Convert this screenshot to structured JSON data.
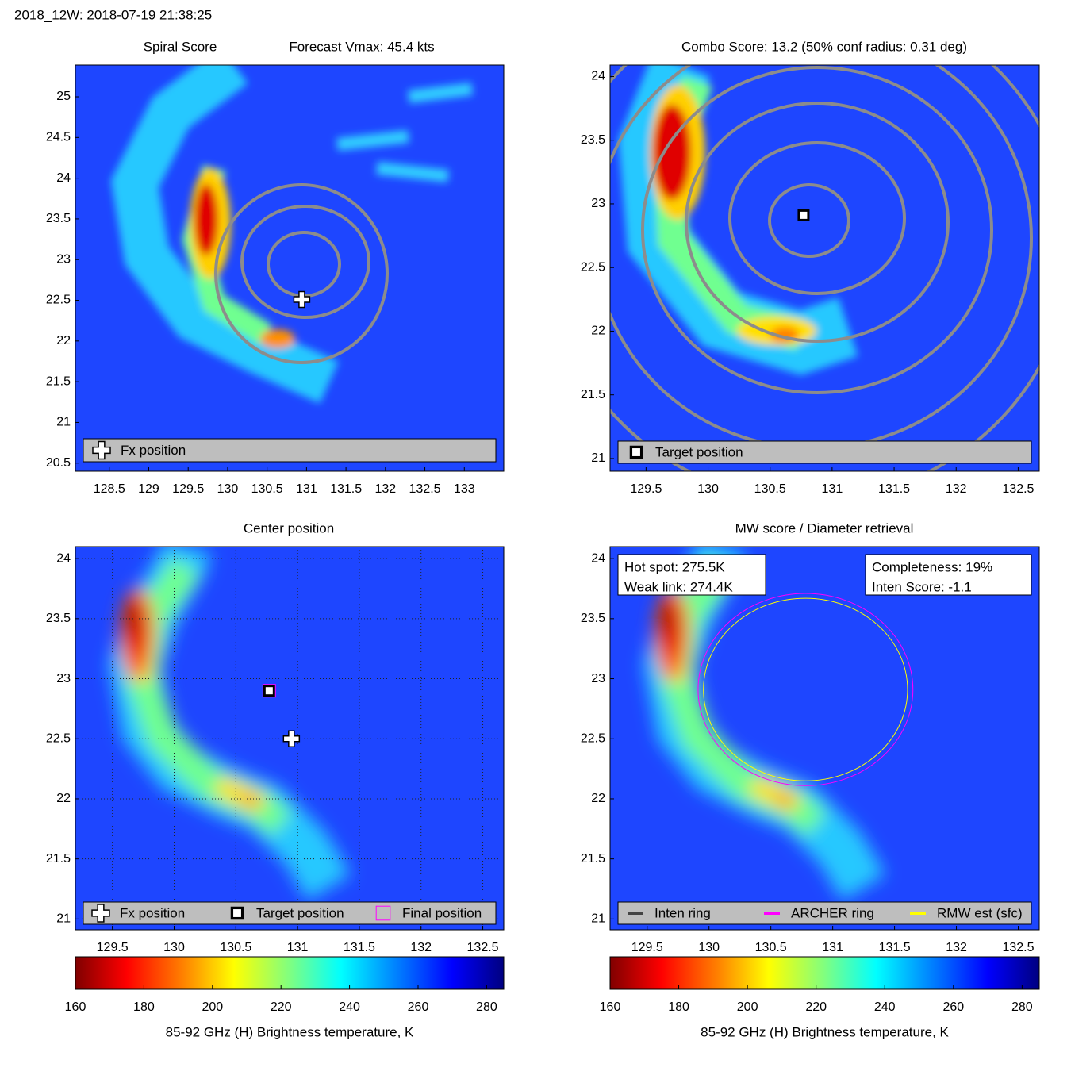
{
  "header": "2018_12W: 2018-07-19 21:38:25",
  "chart_data": [
    {
      "type": "map",
      "title": "Spiral Score",
      "subtitle": "Forecast Vmax: 45.4 kts",
      "xlim": [
        128.07,
        133.5
      ],
      "ylim": [
        20.4,
        25.39
      ],
      "xticks": [
        128.5,
        129,
        129.5,
        130,
        130.5,
        131,
        131.5,
        132,
        132.5,
        133
      ],
      "yticks": [
        20.5,
        21,
        21.5,
        22,
        22.5,
        23,
        23.5,
        24,
        24.5,
        25
      ],
      "grid": false,
      "series": [
        {
          "name": "Fx position",
          "marker": "plus",
          "color": "#ffffff",
          "x": [
            130.94
          ],
          "y": [
            22.51
          ]
        }
      ]
    },
    {
      "type": "map",
      "title": "Combo Score: 13.2  (50% conf radius: 0.31 deg)",
      "xlim": [
        129.21,
        132.67
      ],
      "ylim": [
        20.9,
        24.09
      ],
      "xticks": [
        129.5,
        130,
        130.5,
        131,
        131.5,
        132,
        132.5
      ],
      "yticks": [
        21,
        21.5,
        22,
        22.5,
        23,
        23.5,
        24
      ],
      "grid": false,
      "series": [
        {
          "name": "Target position",
          "marker": "square",
          "color": "#000000",
          "x": [
            130.77
          ],
          "y": [
            22.91
          ]
        }
      ]
    },
    {
      "type": "map",
      "title": "Center position",
      "xlim": [
        129.2,
        132.67
      ],
      "ylim": [
        20.91,
        24.1
      ],
      "xticks": [
        129.5,
        130,
        130.5,
        131,
        131.5,
        132,
        132.5
      ],
      "yticks": [
        21,
        21.5,
        22,
        22.5,
        23,
        23.5,
        24
      ],
      "grid": true,
      "series": [
        {
          "name": "Fx position",
          "marker": "plus",
          "color": "#ffffff",
          "x": [
            130.95
          ],
          "y": [
            22.5
          ]
        },
        {
          "name": "Target position",
          "marker": "square",
          "color": "#000000",
          "x": [
            130.77
          ],
          "y": [
            22.9
          ]
        },
        {
          "name": "Final position",
          "marker": "box",
          "color": "#ff00ff",
          "x": [
            130.77
          ],
          "y": [
            22.9
          ]
        }
      ]
    },
    {
      "type": "map",
      "title": "MW score / Diameter retrieval",
      "xlim": [
        129.2,
        132.67
      ],
      "ylim": [
        20.91,
        24.1
      ],
      "xticks": [
        129.5,
        130,
        130.5,
        131,
        131.5,
        132,
        132.5
      ],
      "yticks": [
        21,
        21.5,
        22,
        22.5,
        23,
        23.5,
        24
      ],
      "grid": false,
      "annotations": [
        "Hot spot: 275.5K",
        "Weak link: 274.4K",
        "Completeness: 19%",
        "Inten Score: -1.1"
      ],
      "series": [
        {
          "name": "Inten ring",
          "marker": "ring",
          "color": "#444444",
          "x": [],
          "y": [],
          "radius": []
        },
        {
          "name": "ARCHER ring",
          "marker": "ring",
          "color": "#ff00ff",
          "x": [
            130.78
          ],
          "y": [
            22.91
          ],
          "radius": [
            0.8
          ]
        },
        {
          "name": "RMW est (sfc)",
          "marker": "ring",
          "color": "#ffff00",
          "x": [
            130.78
          ],
          "y": [
            22.91
          ],
          "radius": [
            0.76
          ]
        }
      ]
    },
    {
      "type": "colorbar",
      "xlabel": "85-92 GHz (H) Brightness temperature, K",
      "xlim": [
        160,
        285
      ],
      "xticks": [
        160,
        180,
        200,
        220,
        240,
        260,
        280
      ]
    },
    {
      "type": "colorbar",
      "xlabel": "85-92 GHz (H) Brightness temperature, K",
      "xlim": [
        160,
        285
      ],
      "xticks": [
        160,
        180,
        200,
        220,
        240,
        260,
        280
      ]
    }
  ]
}
